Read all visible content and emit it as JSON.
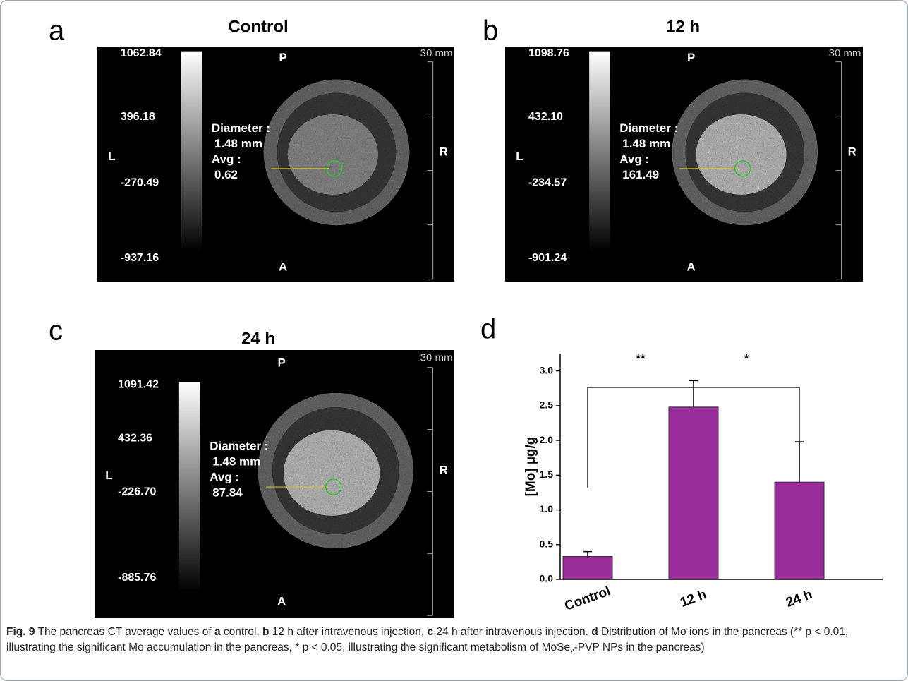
{
  "panels": [
    {
      "label": "a",
      "title": "Control",
      "scale_values": [
        "1062.84",
        "396.18",
        "-270.49",
        "-937.16"
      ],
      "orientation": {
        "top": "P",
        "bottom": "A",
        "left": "L",
        "right": "R"
      },
      "scale_bar": "30 mm",
      "measure": [
        "Diameter :",
        "1.48 mm",
        "Avg :",
        "0.62"
      ]
    },
    {
      "label": "b",
      "title": "12 h",
      "scale_values": [
        "1098.76",
        "432.10",
        "-234.57",
        "-901.24"
      ],
      "orientation": {
        "top": "P",
        "bottom": "A",
        "left": "L",
        "right": "R"
      },
      "scale_bar": "30 mm",
      "measure": [
        "Diameter :",
        "1.48 mm",
        "Avg :",
        "161.49"
      ]
    },
    {
      "label": "c",
      "title": "24 h",
      "scale_values": [
        "1091.42",
        "432.36",
        "-226.70",
        "-885.76"
      ],
      "orientation": {
        "top": "P",
        "bottom": "A",
        "left": "L",
        "right": "R"
      },
      "scale_bar": "30 mm",
      "measure": [
        "Diameter :",
        "1.48 mm",
        "Avg :",
        "87.84"
      ]
    }
  ],
  "chart_data": {
    "type": "bar",
    "panel_label": "d",
    "y_label": "[Mo] µg/g",
    "categories": [
      "Control",
      "12 h",
      "24 h"
    ],
    "values": [
      0.33,
      2.48,
      1.4
    ],
    "errors": [
      0.07,
      0.38,
      0.58
    ],
    "color": "#992d99",
    "ylim": [
      0,
      3.25
    ],
    "yticks": [
      {
        "value": 0,
        "label": "0.0"
      },
      0.5,
      {
        "value": 1,
        "label": "1.0"
      },
      1.5,
      {
        "value": 2,
        "label": "2.0"
      },
      2.5,
      {
        "value": 3,
        "label": "3.0"
      }
    ],
    "annotations": [
      "**",
      "*"
    ]
  },
  "caption": [
    "Fig. 9",
    " The pancreas CT average values of ",
    "a",
    " control, ",
    "b",
    " 12 h after intravenous injection, ",
    "c",
    " 24 h after intravenous injection. ",
    "d",
    " Distribution of Mo ions in the pancreas (** p < 0.01, illustrating the significant Mo accumulation in the pancreas, * p < 0.05, illustrating the significant metabolism of MoSe",
    "2",
    "-PVP NPs in the pancreas)"
  ]
}
